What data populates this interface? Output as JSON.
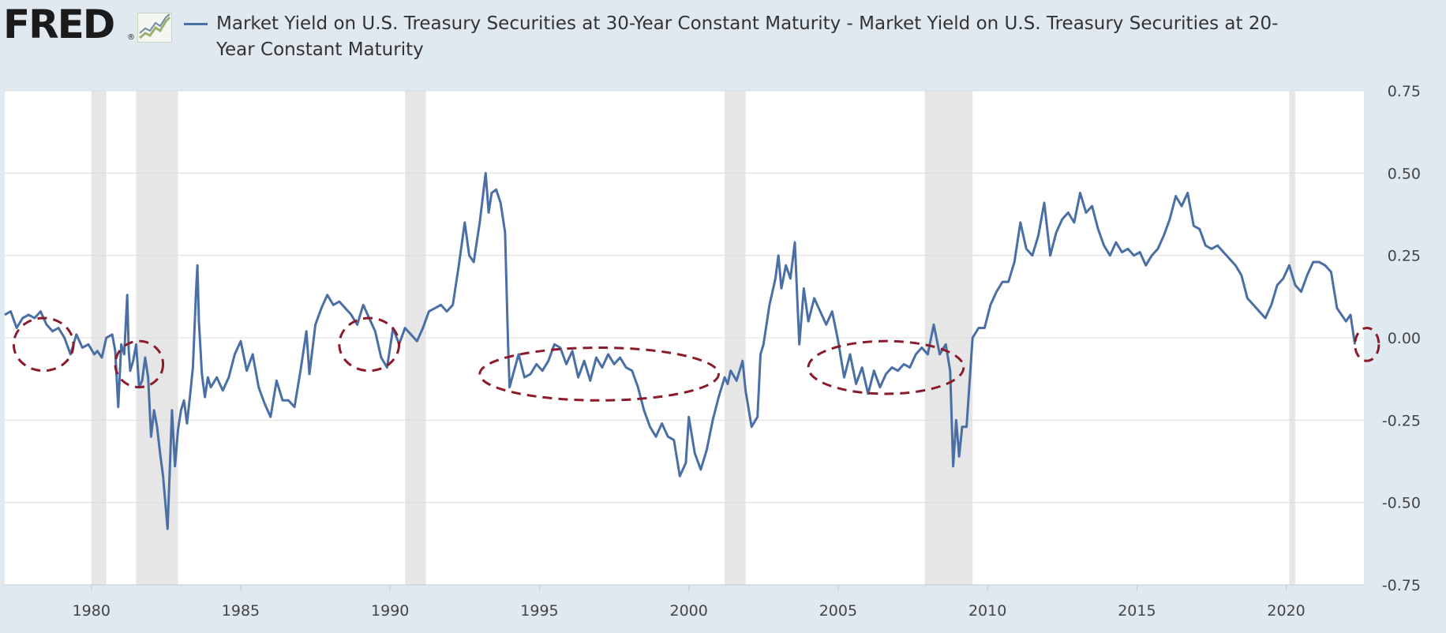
{
  "logo": {
    "text": "FRED",
    "reg": "®"
  },
  "colors": {
    "series": "#4a6fa5",
    "recession": "#e6e6e6",
    "grid": "#dcdcdc",
    "annotation": "#8b1a2b",
    "background": "#e1e9f0",
    "plot": "#ffffff"
  },
  "chart_data": {
    "type": "line",
    "title": "",
    "xlabel": "",
    "ylabel": "",
    "grid": "horizontal",
    "legend_position": "top",
    "series": [
      {
        "name": "Market Yield on U.S. Treasury Securities at 30-Year Constant Maturity - Market Yield on U.S. Treasury Securities at 20-Year Constant Maturity",
        "points": [
          [
            1977.1,
            0.07
          ],
          [
            1977.3,
            0.08
          ],
          [
            1977.5,
            0.03
          ],
          [
            1977.7,
            0.06
          ],
          [
            1977.9,
            0.07
          ],
          [
            1978.1,
            0.06
          ],
          [
            1978.3,
            0.08
          ],
          [
            1978.5,
            0.04
          ],
          [
            1978.7,
            0.02
          ],
          [
            1978.9,
            0.03
          ],
          [
            1979.1,
            0.0
          ],
          [
            1979.3,
            -0.05
          ],
          [
            1979.5,
            0.01
          ],
          [
            1979.7,
            -0.03
          ],
          [
            1979.9,
            -0.02
          ],
          [
            1980.1,
            -0.05
          ],
          [
            1980.2,
            -0.04
          ],
          [
            1980.35,
            -0.06
          ],
          [
            1980.5,
            0.0
          ],
          [
            1980.7,
            0.01
          ],
          [
            1980.8,
            -0.04
          ],
          [
            1980.9,
            -0.21
          ],
          [
            1981.0,
            -0.02
          ],
          [
            1981.1,
            -0.05
          ],
          [
            1981.2,
            0.13
          ],
          [
            1981.25,
            -0.04
          ],
          [
            1981.3,
            -0.1
          ],
          [
            1981.4,
            -0.07
          ],
          [
            1981.5,
            -0.02
          ],
          [
            1981.6,
            -0.15
          ],
          [
            1981.7,
            -0.13
          ],
          [
            1981.8,
            -0.06
          ],
          [
            1981.9,
            -0.12
          ],
          [
            1982.0,
            -0.3
          ],
          [
            1982.1,
            -0.22
          ],
          [
            1982.2,
            -0.27
          ],
          [
            1982.3,
            -0.35
          ],
          [
            1982.4,
            -0.42
          ],
          [
            1982.55,
            -0.58
          ],
          [
            1982.7,
            -0.22
          ],
          [
            1982.8,
            -0.39
          ],
          [
            1982.9,
            -0.28
          ],
          [
            1983.0,
            -0.22
          ],
          [
            1983.1,
            -0.19
          ],
          [
            1983.2,
            -0.26
          ],
          [
            1983.3,
            -0.18
          ],
          [
            1983.4,
            -0.09
          ],
          [
            1983.5,
            0.13
          ],
          [
            1983.55,
            0.22
          ],
          [
            1983.6,
            0.05
          ],
          [
            1983.7,
            -0.11
          ],
          [
            1983.8,
            -0.18
          ],
          [
            1983.9,
            -0.12
          ],
          [
            1984.0,
            -0.15
          ],
          [
            1984.2,
            -0.12
          ],
          [
            1984.4,
            -0.16
          ],
          [
            1984.6,
            -0.12
          ],
          [
            1984.8,
            -0.05
          ],
          [
            1985.0,
            -0.01
          ],
          [
            1985.2,
            -0.1
          ],
          [
            1985.4,
            -0.05
          ],
          [
            1985.6,
            -0.15
          ],
          [
            1985.8,
            -0.2
          ],
          [
            1986.0,
            -0.24
          ],
          [
            1986.2,
            -0.13
          ],
          [
            1986.4,
            -0.19
          ],
          [
            1986.6,
            -0.19
          ],
          [
            1986.8,
            -0.21
          ],
          [
            1987.0,
            -0.1
          ],
          [
            1987.2,
            0.02
          ],
          [
            1987.3,
            -0.11
          ],
          [
            1987.5,
            0.04
          ],
          [
            1987.7,
            0.09
          ],
          [
            1987.9,
            0.13
          ],
          [
            1988.1,
            0.1
          ],
          [
            1988.3,
            0.11
          ],
          [
            1988.5,
            0.09
          ],
          [
            1988.7,
            0.07
          ],
          [
            1988.9,
            0.04
          ],
          [
            1989.1,
            0.1
          ],
          [
            1989.3,
            0.06
          ],
          [
            1989.5,
            0.02
          ],
          [
            1989.7,
            -0.06
          ],
          [
            1989.9,
            -0.09
          ],
          [
            1990.1,
            0.03
          ],
          [
            1990.3,
            -0.02
          ],
          [
            1990.5,
            0.03
          ],
          [
            1990.7,
            0.01
          ],
          [
            1990.9,
            -0.01
          ],
          [
            1991.1,
            0.03
          ],
          [
            1991.3,
            0.08
          ],
          [
            1991.5,
            0.09
          ],
          [
            1991.7,
            0.1
          ],
          [
            1991.9,
            0.08
          ],
          [
            1992.1,
            0.1
          ],
          [
            1992.3,
            0.22
          ],
          [
            1992.5,
            0.35
          ],
          [
            1992.65,
            0.25
          ],
          [
            1992.8,
            0.23
          ],
          [
            1993.0,
            0.35
          ],
          [
            1993.2,
            0.5
          ],
          [
            1993.3,
            0.38
          ],
          [
            1993.4,
            0.44
          ],
          [
            1993.55,
            0.45
          ],
          [
            1993.7,
            0.41
          ],
          [
            1993.85,
            0.32
          ],
          [
            1993.95,
            -0.02
          ],
          [
            1994.0,
            -0.15
          ],
          [
            1994.15,
            -0.1
          ],
          [
            1994.3,
            -0.05
          ],
          [
            1994.5,
            -0.12
          ],
          [
            1994.7,
            -0.11
          ],
          [
            1994.9,
            -0.08
          ],
          [
            1995.1,
            -0.1
          ],
          [
            1995.3,
            -0.07
          ],
          [
            1995.5,
            -0.02
          ],
          [
            1995.7,
            -0.03
          ],
          [
            1995.9,
            -0.08
          ],
          [
            1996.1,
            -0.04
          ],
          [
            1996.3,
            -0.12
          ],
          [
            1996.5,
            -0.07
          ],
          [
            1996.7,
            -0.13
          ],
          [
            1996.9,
            -0.06
          ],
          [
            1997.1,
            -0.09
          ],
          [
            1997.3,
            -0.05
          ],
          [
            1997.5,
            -0.08
          ],
          [
            1997.7,
            -0.06
          ],
          [
            1997.9,
            -0.09
          ],
          [
            1998.1,
            -0.1
          ],
          [
            1998.3,
            -0.15
          ],
          [
            1998.5,
            -0.22
          ],
          [
            1998.7,
            -0.27
          ],
          [
            1998.9,
            -0.3
          ],
          [
            1999.1,
            -0.26
          ],
          [
            1999.3,
            -0.3
          ],
          [
            1999.5,
            -0.31
          ],
          [
            1999.7,
            -0.42
          ],
          [
            1999.9,
            -0.38
          ],
          [
            2000.0,
            -0.24
          ],
          [
            2000.2,
            -0.35
          ],
          [
            2000.4,
            -0.4
          ],
          [
            2000.6,
            -0.34
          ],
          [
            2000.8,
            -0.25
          ],
          [
            2001.0,
            -0.18
          ],
          [
            2001.2,
            -0.12
          ],
          [
            2001.3,
            -0.14
          ],
          [
            2001.4,
            -0.1
          ],
          [
            2001.6,
            -0.13
          ],
          [
            2001.8,
            -0.07
          ],
          [
            2001.9,
            -0.16
          ],
          [
            2002.1,
            -0.27
          ],
          [
            2002.3,
            -0.24
          ],
          [
            2002.4,
            -0.05
          ],
          [
            2002.5,
            -0.02
          ],
          [
            2002.7,
            0.1
          ],
          [
            2002.9,
            0.18
          ],
          [
            2003.0,
            0.25
          ],
          [
            2003.1,
            0.15
          ],
          [
            2003.25,
            0.22
          ],
          [
            2003.4,
            0.18
          ],
          [
            2003.55,
            0.29
          ],
          [
            2003.7,
            -0.02
          ],
          [
            2003.85,
            0.15
          ],
          [
            2004.0,
            0.05
          ],
          [
            2004.2,
            0.12
          ],
          [
            2004.4,
            0.08
          ],
          [
            2004.6,
            0.04
          ],
          [
            2004.8,
            0.08
          ],
          [
            2005.0,
            -0.01
          ],
          [
            2005.2,
            -0.12
          ],
          [
            2005.4,
            -0.05
          ],
          [
            2005.6,
            -0.14
          ],
          [
            2005.8,
            -0.09
          ],
          [
            2006.0,
            -0.17
          ],
          [
            2006.2,
            -0.1
          ],
          [
            2006.4,
            -0.15
          ],
          [
            2006.6,
            -0.11
          ],
          [
            2006.8,
            -0.09
          ],
          [
            2007.0,
            -0.1
          ],
          [
            2007.2,
            -0.08
          ],
          [
            2007.4,
            -0.09
          ],
          [
            2007.6,
            -0.05
          ],
          [
            2007.8,
            -0.03
          ],
          [
            2008.0,
            -0.05
          ],
          [
            2008.2,
            0.04
          ],
          [
            2008.4,
            -0.05
          ],
          [
            2008.6,
            -0.02
          ],
          [
            2008.75,
            -0.1
          ],
          [
            2008.85,
            -0.39
          ],
          [
            2008.95,
            -0.25
          ],
          [
            2009.05,
            -0.36
          ],
          [
            2009.15,
            -0.27
          ],
          [
            2009.3,
            -0.27
          ],
          [
            2009.5,
            0.0
          ],
          [
            2009.7,
            0.03
          ],
          [
            2009.9,
            0.03
          ],
          [
            2010.1,
            0.1
          ],
          [
            2010.3,
            0.14
          ],
          [
            2010.5,
            0.17
          ],
          [
            2010.7,
            0.17
          ],
          [
            2010.9,
            0.23
          ],
          [
            2011.1,
            0.35
          ],
          [
            2011.3,
            0.27
          ],
          [
            2011.5,
            0.25
          ],
          [
            2011.7,
            0.31
          ],
          [
            2011.9,
            0.41
          ],
          [
            2012.1,
            0.25
          ],
          [
            2012.3,
            0.32
          ],
          [
            2012.5,
            0.36
          ],
          [
            2012.7,
            0.38
          ],
          [
            2012.9,
            0.35
          ],
          [
            2013.1,
            0.44
          ],
          [
            2013.3,
            0.38
          ],
          [
            2013.5,
            0.4
          ],
          [
            2013.7,
            0.33
          ],
          [
            2013.9,
            0.28
          ],
          [
            2014.1,
            0.25
          ],
          [
            2014.3,
            0.29
          ],
          [
            2014.5,
            0.26
          ],
          [
            2014.7,
            0.27
          ],
          [
            2014.9,
            0.25
          ],
          [
            2015.1,
            0.26
          ],
          [
            2015.3,
            0.22
          ],
          [
            2015.5,
            0.25
          ],
          [
            2015.7,
            0.27
          ],
          [
            2015.9,
            0.31
          ],
          [
            2016.1,
            0.36
          ],
          [
            2016.3,
            0.43
          ],
          [
            2016.5,
            0.4
          ],
          [
            2016.7,
            0.44
          ],
          [
            2016.9,
            0.34
          ],
          [
            2017.1,
            0.33
          ],
          [
            2017.3,
            0.28
          ],
          [
            2017.5,
            0.27
          ],
          [
            2017.7,
            0.28
          ],
          [
            2017.9,
            0.26
          ],
          [
            2018.1,
            0.24
          ],
          [
            2018.3,
            0.22
          ],
          [
            2018.5,
            0.19
          ],
          [
            2018.7,
            0.12
          ],
          [
            2018.9,
            0.1
          ],
          [
            2019.1,
            0.08
          ],
          [
            2019.3,
            0.06
          ],
          [
            2019.5,
            0.1
          ],
          [
            2019.7,
            0.16
          ],
          [
            2019.9,
            0.18
          ],
          [
            2020.1,
            0.22
          ],
          [
            2020.3,
            0.16
          ],
          [
            2020.5,
            0.14
          ],
          [
            2020.7,
            0.19
          ],
          [
            2020.9,
            0.23
          ],
          [
            2021.1,
            0.23
          ],
          [
            2021.3,
            0.22
          ],
          [
            2021.5,
            0.2
          ],
          [
            2021.7,
            0.09
          ],
          [
            2021.85,
            0.07
          ],
          [
            2022.0,
            0.05
          ],
          [
            2022.15,
            0.07
          ],
          [
            2022.3,
            -0.02
          ]
        ]
      }
    ],
    "recessions": [
      [
        1980.0,
        1980.5
      ],
      [
        1981.5,
        1982.9
      ],
      [
        1990.5,
        1991.2
      ],
      [
        2001.2,
        2001.9
      ],
      [
        2007.9,
        2009.5
      ],
      [
        2020.1,
        2020.3
      ]
    ],
    "xlim": [
      1977.1,
      2022.6
    ],
    "ylim": [
      -0.75,
      0.75
    ],
    "xticks": [
      1980,
      1985,
      1990,
      1995,
      2000,
      2005,
      2010,
      2015,
      2020
    ],
    "xtick_labels": [
      "1980",
      "1985",
      "1990",
      "1995",
      "2000",
      "2005",
      "2010",
      "2015",
      "2020"
    ],
    "yticks": [
      0.75,
      0.5,
      0.25,
      0.0,
      -0.25,
      -0.5,
      -0.75
    ],
    "ytick_labels": [
      "0.75",
      "0.50",
      "0.25",
      "0.00",
      "-0.25",
      "-0.50",
      "-0.75"
    ],
    "annotations": [
      {
        "type": "ellipse",
        "center": [
          1978.4,
          -0.02
        ],
        "radius": [
          1.0,
          0.08
        ]
      },
      {
        "type": "ellipse",
        "center": [
          1981.6,
          -0.08
        ],
        "radius": [
          0.8,
          0.07
        ]
      },
      {
        "type": "ellipse",
        "center": [
          1989.3,
          -0.02
        ],
        "radius": [
          1.0,
          0.08
        ]
      },
      {
        "type": "ellipse",
        "center": [
          1997.0,
          -0.11
        ],
        "radius": [
          4.0,
          0.08
        ]
      },
      {
        "type": "ellipse",
        "center": [
          2006.6,
          -0.09
        ],
        "radius": [
          2.6,
          0.08
        ]
      },
      {
        "type": "ellipse",
        "center": [
          2022.7,
          -0.02
        ],
        "radius": [
          0.4,
          0.05
        ]
      }
    ]
  }
}
